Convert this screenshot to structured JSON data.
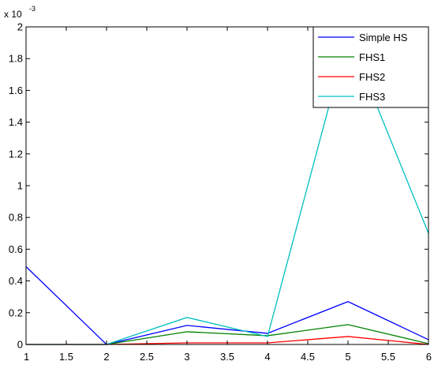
{
  "chart_data": {
    "type": "line",
    "title": "",
    "xlabel": "",
    "ylabel": "",
    "y_exponent_label": "x 10",
    "y_exponent_power": "-3",
    "xlim": [
      1,
      6
    ],
    "ylim": [
      0,
      2
    ],
    "x_ticks": [
      1,
      1.5,
      2,
      2.5,
      3,
      3.5,
      4,
      4.5,
      5,
      5.5,
      6
    ],
    "x_tick_labels": [
      "1",
      "1.5",
      "2",
      "2.5",
      "3",
      "3.5",
      "4",
      "4.5",
      "5",
      "5.5",
      "6"
    ],
    "y_ticks": [
      0,
      0.2,
      0.4,
      0.6,
      0.8,
      1,
      1.2,
      1.4,
      1.6,
      1.8,
      2
    ],
    "y_tick_labels": [
      "0",
      "0.2",
      "0.4",
      "0.6",
      "0.8",
      "1",
      "1.2",
      "1.4",
      "1.6",
      "1.8",
      "2"
    ],
    "grid": false,
    "legend_position": "top-right",
    "x": [
      1,
      2,
      3,
      4,
      5,
      6
    ],
    "series": [
      {
        "name": "Simple HS",
        "color": "#0000ff",
        "values": [
          0.49,
          0.0,
          0.12,
          0.07,
          0.27,
          0.03
        ]
      },
      {
        "name": "FHS1",
        "color": "#008000",
        "values": [
          0.0,
          0.0,
          0.08,
          0.055,
          0.125,
          0.005
        ]
      },
      {
        "name": "FHS2",
        "color": "#ff0000",
        "values": [
          0.0,
          0.0,
          0.01,
          0.01,
          0.05,
          0.0
        ]
      },
      {
        "name": "FHS3",
        "color": "#00bfbf",
        "values": [
          0.0,
          0.0,
          0.17,
          0.05,
          1.95,
          0.7
        ]
      }
    ]
  }
}
